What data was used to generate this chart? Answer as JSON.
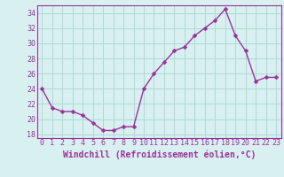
{
  "x": [
    0,
    1,
    2,
    3,
    4,
    5,
    6,
    7,
    8,
    9,
    10,
    11,
    12,
    13,
    14,
    15,
    16,
    17,
    18,
    19,
    20,
    21,
    22,
    23
  ],
  "y": [
    24,
    21.5,
    21,
    21,
    20.5,
    19.5,
    18.5,
    18.5,
    19,
    19,
    24,
    26,
    27.5,
    29,
    29.5,
    31,
    32,
    33,
    34.5,
    31,
    29,
    25,
    25.5,
    25.5
  ],
  "line_color": "#993399",
  "marker": "D",
  "marker_size": 2.5,
  "linewidth": 1.0,
  "xlabel": "Windchill (Refroidissement éolien,°C)",
  "xlabel_fontsize": 7,
  "background_color": "#d8f0f0",
  "grid_color": "#b0d8d8",
  "ylim": [
    17.5,
    35
  ],
  "xlim": [
    -0.5,
    23.5
  ],
  "yticks": [
    18,
    20,
    22,
    24,
    26,
    28,
    30,
    32,
    34
  ],
  "xticks": [
    0,
    1,
    2,
    3,
    4,
    5,
    6,
    7,
    8,
    9,
    10,
    11,
    12,
    13,
    14,
    15,
    16,
    17,
    18,
    19,
    20,
    21,
    22,
    23
  ],
  "tick_fontsize": 6,
  "tick_color": "#993399",
  "spine_color": "#993399"
}
